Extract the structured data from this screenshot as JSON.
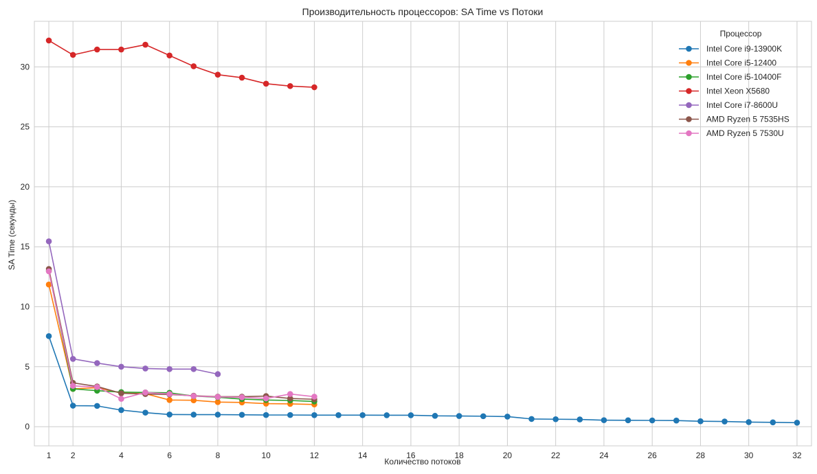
{
  "chart_data": {
    "type": "line",
    "title": "Производительность процессоров: SA Time vs Потоки",
    "xlabel": "Количество потоков",
    "ylabel": "SA Time (секунды)",
    "xlim": [
      0.4,
      32.6
    ],
    "ylim": [
      -1.6,
      33.8
    ],
    "xticks": [
      1,
      2,
      4,
      6,
      8,
      10,
      12,
      14,
      16,
      18,
      20,
      22,
      24,
      26,
      28,
      30,
      32
    ],
    "yticks": [
      0,
      5,
      10,
      15,
      20,
      25,
      30
    ],
    "grid": true,
    "legend_title": "Процессор",
    "legend_position": "top-right",
    "series": [
      {
        "name": "Intel Core i9-13900K",
        "color": "#1f77b4",
        "x": [
          1,
          2,
          3,
          4,
          5,
          6,
          7,
          8,
          9,
          10,
          11,
          12,
          13,
          14,
          15,
          16,
          17,
          18,
          19,
          20,
          21,
          22,
          23,
          24,
          25,
          26,
          27,
          28,
          29,
          30,
          31,
          32
        ],
        "y": [
          7.55,
          1.75,
          1.73,
          1.38,
          1.17,
          1.01,
          1.0,
          1.0,
          0.99,
          0.97,
          0.97,
          0.96,
          0.96,
          0.96,
          0.95,
          0.95,
          0.9,
          0.89,
          0.87,
          0.84,
          0.64,
          0.62,
          0.6,
          0.54,
          0.53,
          0.52,
          0.51,
          0.45,
          0.43,
          0.38,
          0.36,
          0.33
        ]
      },
      {
        "name": "Intel Core i5-12400",
        "color": "#ff7f0e",
        "x": [
          1,
          2,
          3,
          4,
          5,
          6,
          7,
          8,
          9,
          10,
          11,
          12
        ],
        "y": [
          11.85,
          3.15,
          3.25,
          2.8,
          2.75,
          2.22,
          2.2,
          2.05,
          2.02,
          1.92,
          1.9,
          1.85
        ]
      },
      {
        "name": "Intel Core i5-10400F",
        "color": "#2ca02c",
        "x": [
          1,
          2,
          3,
          4,
          5,
          6,
          7,
          8,
          9,
          10,
          11,
          12
        ],
        "y": [
          13.0,
          3.15,
          3.0,
          2.88,
          2.85,
          2.82,
          2.55,
          2.45,
          2.3,
          2.22,
          2.18,
          2.1
        ]
      },
      {
        "name": "Intel Xeon X5680",
        "color": "#d62728",
        "x": [
          1,
          2,
          3,
          4,
          5,
          6,
          7,
          8,
          9,
          10,
          11,
          12
        ],
        "y": [
          32.2,
          31.0,
          31.45,
          31.45,
          31.85,
          30.95,
          30.05,
          29.35,
          29.1,
          28.6,
          28.4,
          28.3
        ]
      },
      {
        "name": "Intel Core i7-8600U",
        "color": "#9467bd",
        "x": [
          1,
          2,
          3,
          4,
          5,
          6,
          7,
          8
        ],
        "y": [
          15.45,
          5.65,
          5.3,
          5.0,
          4.85,
          4.8,
          4.8,
          4.38
        ]
      },
      {
        "name": "AMD Ryzen 5 7535HS",
        "color": "#8c564b",
        "x": [
          1,
          2,
          3,
          4,
          5,
          6,
          7,
          8,
          9,
          10,
          11,
          12
        ],
        "y": [
          13.15,
          3.65,
          3.35,
          2.78,
          2.72,
          2.68,
          2.58,
          2.5,
          2.5,
          2.55,
          2.35,
          2.28
        ]
      },
      {
        "name": "AMD Ryzen 5 7530U",
        "color": "#e377c2",
        "x": [
          1,
          2,
          3,
          4,
          5,
          6,
          7,
          8,
          9,
          10,
          11,
          12
        ],
        "y": [
          12.95,
          3.4,
          3.3,
          2.32,
          2.85,
          2.72,
          2.55,
          2.48,
          2.45,
          2.35,
          2.72,
          2.5
        ]
      }
    ]
  }
}
